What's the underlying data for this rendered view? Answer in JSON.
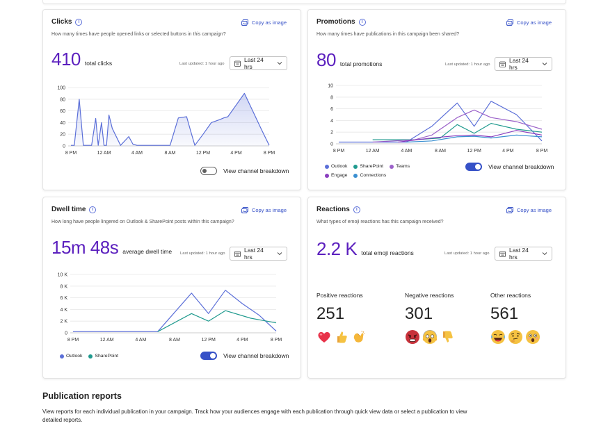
{
  "cards": {
    "clicks": {
      "title": "Clicks",
      "copy_label": "Copy as image",
      "description": "How many times have people opened links or selected buttons in this campaign?",
      "metric_value": "410",
      "metric_label": "total clicks",
      "last_updated": "Last updated: 1 hour ago",
      "range": "Last 24 hrs",
      "toggle_label": "View channel breakdown",
      "toggle_on": false
    },
    "promotions": {
      "title": "Promotions",
      "copy_label": "Copy as image",
      "description": "How many times have publications in this campaign been shared?",
      "metric_value": "80",
      "metric_label": "total promotions",
      "last_updated": "Last updated: 1 hour ago",
      "range": "Last 24 hrs",
      "toggle_label": "View channel breakdown",
      "toggle_on": true
    },
    "dwell": {
      "title": "Dwell time",
      "copy_label": "Copy as image",
      "description": "How long have people lingered on Outlook & SharePoint posts within this campaign?",
      "metric_value": "15m 48s",
      "metric_label": "average dwell time",
      "last_updated": "Last updated: 1 hour ago",
      "range": "Last 24 hrs",
      "toggle_label": "View channel breakdown",
      "toggle_on": true
    },
    "reactions": {
      "title": "Reactions",
      "copy_label": "Copy as image",
      "description": "What types of emoji reactions has this campaign received?",
      "metric_value": "2.2 K",
      "metric_label": "total emoji reactions",
      "last_updated": "Last updated: 1 hour ago",
      "range": "Last 24 hrs",
      "groups": [
        {
          "title": "Positive reactions",
          "count": "251",
          "emojis": [
            "heart",
            "thumbs-up",
            "clap"
          ]
        },
        {
          "title": "Negative reactions",
          "count": "301",
          "emojis": [
            "angry",
            "scream",
            "thumbs-down"
          ]
        },
        {
          "title": "Other reactions",
          "count": "561",
          "emojis": [
            "laugh",
            "thinking",
            "surprised"
          ]
        }
      ]
    }
  },
  "colors": {
    "accent": "#3651c7",
    "metric": "#5b1fbe",
    "outlook": "#5b6fd8",
    "sharepoint": "#1f9a8e",
    "teams": "#9b61c9",
    "engage": "#8a3fbf",
    "connections": "#3a8fd1"
  },
  "section": {
    "title": "Publication reports",
    "description": "View reports for each individual publication in your campaign. Track how your audiences engage with each publication through quick view data or select a publication to view detailed reports."
  },
  "chart_data": [
    {
      "id": "clicks",
      "type": "area",
      "x_ticks": [
        "8 PM",
        "12 AM",
        "4 AM",
        "8 AM",
        "12 PM",
        "4 PM",
        "8 PM"
      ],
      "y_ticks": [
        "0",
        "20",
        "40",
        "60",
        "80",
        "100"
      ],
      "ylim": [
        0,
        100
      ],
      "series": [
        {
          "color": "#5b6fd8",
          "x": [
            0,
            0.4,
            1,
            1.5,
            2,
            2.5,
            3,
            3.3,
            3.7,
            4,
            4.3,
            4.6,
            5,
            6,
            7,
            7.5,
            8,
            9,
            10,
            11,
            12,
            13,
            14,
            14.5,
            15,
            16,
            17,
            18,
            18.5,
            19,
            20,
            21,
            22,
            23,
            24
          ],
          "values": [
            1,
            1,
            80,
            1,
            1,
            1,
            47,
            1,
            40,
            1,
            1,
            53,
            30,
            1,
            16,
            3,
            1,
            1,
            1,
            1,
            1,
            48,
            50,
            25,
            1,
            20,
            40,
            45,
            48,
            50,
            70,
            90,
            60,
            30,
            1
          ]
        }
      ]
    },
    {
      "id": "promotions",
      "type": "line",
      "x_ticks": [
        "8 PM",
        "12 AM",
        "4 AM",
        "8 AM",
        "12 PM",
        "4 PM",
        "8 PM"
      ],
      "y_ticks": [
        "0",
        "2",
        "4",
        "6",
        "8",
        "10"
      ],
      "ylim": [
        0,
        10
      ],
      "series": [
        {
          "name": "Outlook",
          "color": "#5b6fd8",
          "x": [
            0,
            4,
            6,
            8,
            11,
            14,
            16,
            18,
            21,
            24
          ],
          "values": [
            0.3,
            0.3,
            0.3,
            0.3,
            3,
            7,
            3,
            7.3,
            5,
            0.5
          ]
        },
        {
          "name": "SharePoint",
          "color": "#1f9a8e",
          "x": [
            4,
            9,
            12,
            14,
            16,
            18,
            21,
            24
          ],
          "values": [
            0.7,
            0.7,
            1,
            3.3,
            1.8,
            3.5,
            2.5,
            2
          ]
        },
        {
          "name": "Teams",
          "color": "#9b61c9",
          "x": [
            4,
            9,
            11,
            14,
            16,
            18,
            21,
            24
          ],
          "values": [
            0.3,
            0.7,
            1.5,
            4.5,
            5.8,
            4.5,
            3.8,
            2.5
          ]
        },
        {
          "name": "Engage",
          "color": "#8a3fbf",
          "x": [
            7,
            11,
            14,
            16,
            18,
            21,
            24
          ],
          "values": [
            0.3,
            1,
            1.4,
            1.5,
            1.2,
            2.3,
            1.5
          ]
        },
        {
          "name": "Connections",
          "color": "#3a8fd1",
          "x": [
            8,
            11,
            14,
            16,
            18,
            21,
            24
          ],
          "values": [
            0.3,
            0.5,
            1.2,
            1.3,
            1,
            1.5,
            1.2
          ]
        }
      ]
    },
    {
      "id": "dwell",
      "type": "line",
      "x_ticks": [
        "8 PM",
        "12 AM",
        "4 AM",
        "8 AM",
        "12 PM",
        "4 PM",
        "8 PM"
      ],
      "y_ticks": [
        "0",
        "2 K",
        "4 K",
        "6 K",
        "8 K",
        "10 K"
      ],
      "ylim": [
        0,
        10
      ],
      "series": [
        {
          "name": "Outlook",
          "color": "#5b6fd8",
          "x": [
            0,
            4,
            8,
            10,
            14,
            16,
            18,
            20,
            22,
            24
          ],
          "values": [
            0.2,
            0.2,
            0.2,
            0.2,
            6.8,
            3.3,
            7.3,
            5,
            3,
            0.3
          ]
        },
        {
          "name": "SharePoint",
          "color": "#1f9a8e",
          "x": [
            10,
            14,
            16,
            18,
            21,
            24
          ],
          "values": [
            0.2,
            3.3,
            2,
            3.8,
            2.5,
            1.7
          ]
        }
      ]
    }
  ]
}
